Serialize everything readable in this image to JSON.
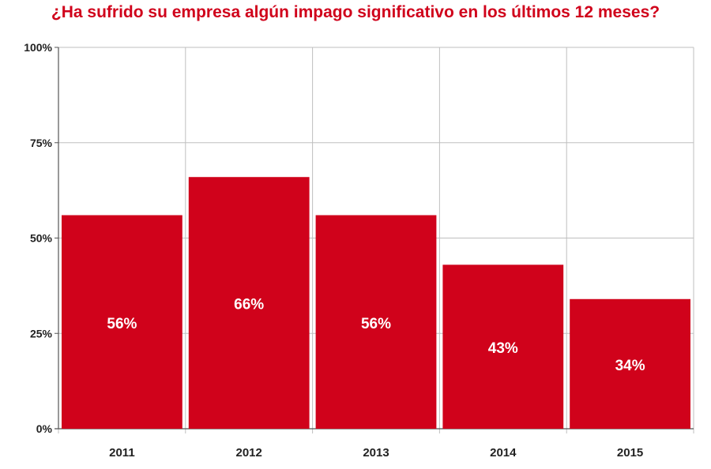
{
  "colors": {
    "accent": "#d0021b",
    "grid": "#bfbfbf",
    "axis": "#555555",
    "label": "#ffffff"
  },
  "chart_data": {
    "type": "bar",
    "title": "¿Ha sufrido su empresa algún impago significativo en los últimos 12 meses?",
    "xlabel": "",
    "ylabel": "",
    "categories": [
      "2011",
      "2012",
      "2013",
      "2014",
      "2015"
    ],
    "values": [
      56,
      66,
      56,
      43,
      34
    ],
    "data_labels": [
      "56%",
      "66%",
      "56%",
      "43%",
      "34%"
    ],
    "ylim": [
      0,
      100
    ],
    "yticks": [
      0,
      25,
      50,
      75,
      100
    ],
    "ytick_labels": [
      "0%",
      "25%",
      "50%",
      "75%",
      "100%"
    ],
    "grid": true,
    "legend": "none"
  }
}
